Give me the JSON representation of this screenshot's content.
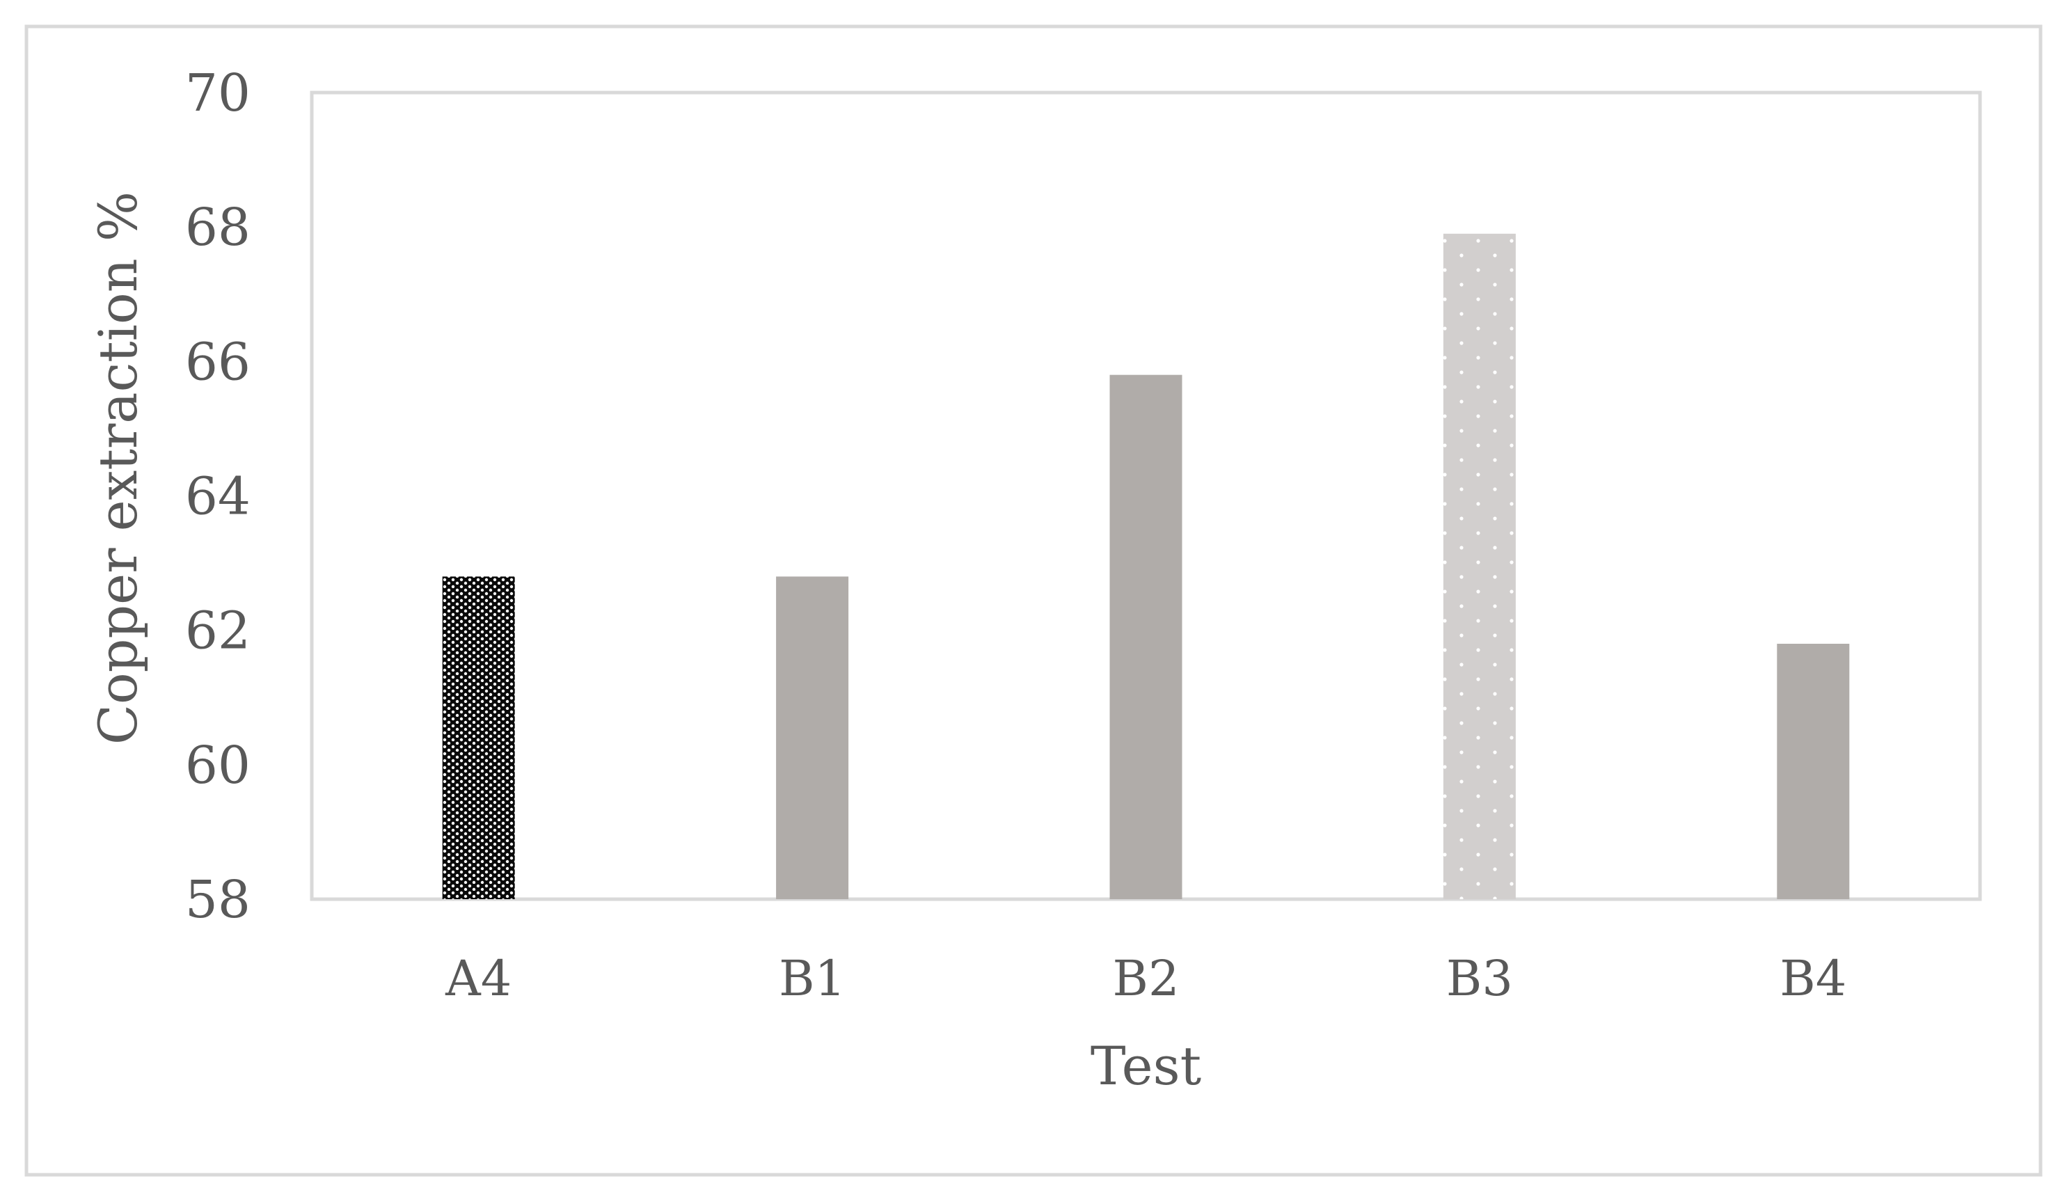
{
  "chart_data": {
    "type": "bar",
    "title": "",
    "xlabel": "Test",
    "ylabel": "Copper extraction %",
    "categories": [
      "A4",
      "B1",
      "B2",
      "B3",
      "B4"
    ],
    "values": [
      62.8,
      62.8,
      65.8,
      67.9,
      61.8
    ],
    "ylim": [
      58,
      70
    ],
    "yticks": [
      58,
      60,
      62,
      64,
      66,
      68,
      70
    ],
    "ytick_labels": [
      "58",
      "60",
      "62",
      "64",
      "66",
      "68",
      "70"
    ],
    "grid": false,
    "legend": "none",
    "bar_styles": [
      "black-dotted",
      "gray-solid",
      "gray-solid",
      "lightgray-dotted",
      "gray-solid"
    ],
    "colors": {
      "solid_gray": "#b0aca9",
      "light_gray": "#d2cfce",
      "dark": "#0a0a0a",
      "frame": "#d9d9d9",
      "text": "#595959"
    }
  }
}
